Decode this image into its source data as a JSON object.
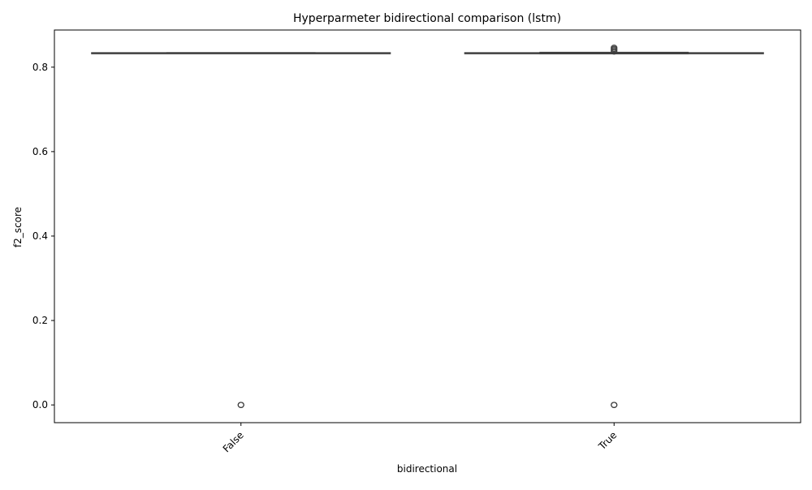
{
  "chart_data": {
    "type": "box",
    "title": "Hyperparmeter bidirectional comparison (lstm)",
    "xlabel": "bidirectional",
    "ylabel": "f2_score",
    "categories": [
      "False",
      "True"
    ],
    "ylim": [
      -0.042,
      0.888
    ],
    "yticks": [
      0.0,
      0.2,
      0.4,
      0.6,
      0.8
    ],
    "ytick_labels": [
      "0.0",
      "0.2",
      "0.4",
      "0.6",
      "0.8"
    ],
    "grid": false,
    "boxes": [
      {
        "category": "False",
        "whisker_low": 0.833,
        "q1": 0.833,
        "median": 0.833,
        "q3": 0.834,
        "whisker_high": 0.834,
        "outliers": [
          0.0,
          0.0
        ]
      },
      {
        "category": "True",
        "whisker_low": 0.832,
        "q1": 0.833,
        "median": 0.833,
        "q3": 0.834,
        "whisker_high": 0.835,
        "outliers": [
          0.0,
          0.0,
          0.837,
          0.84,
          0.843,
          0.846
        ]
      }
    ],
    "colors": {
      "box_line": "#3f3f3f",
      "axis": "#000000"
    }
  }
}
